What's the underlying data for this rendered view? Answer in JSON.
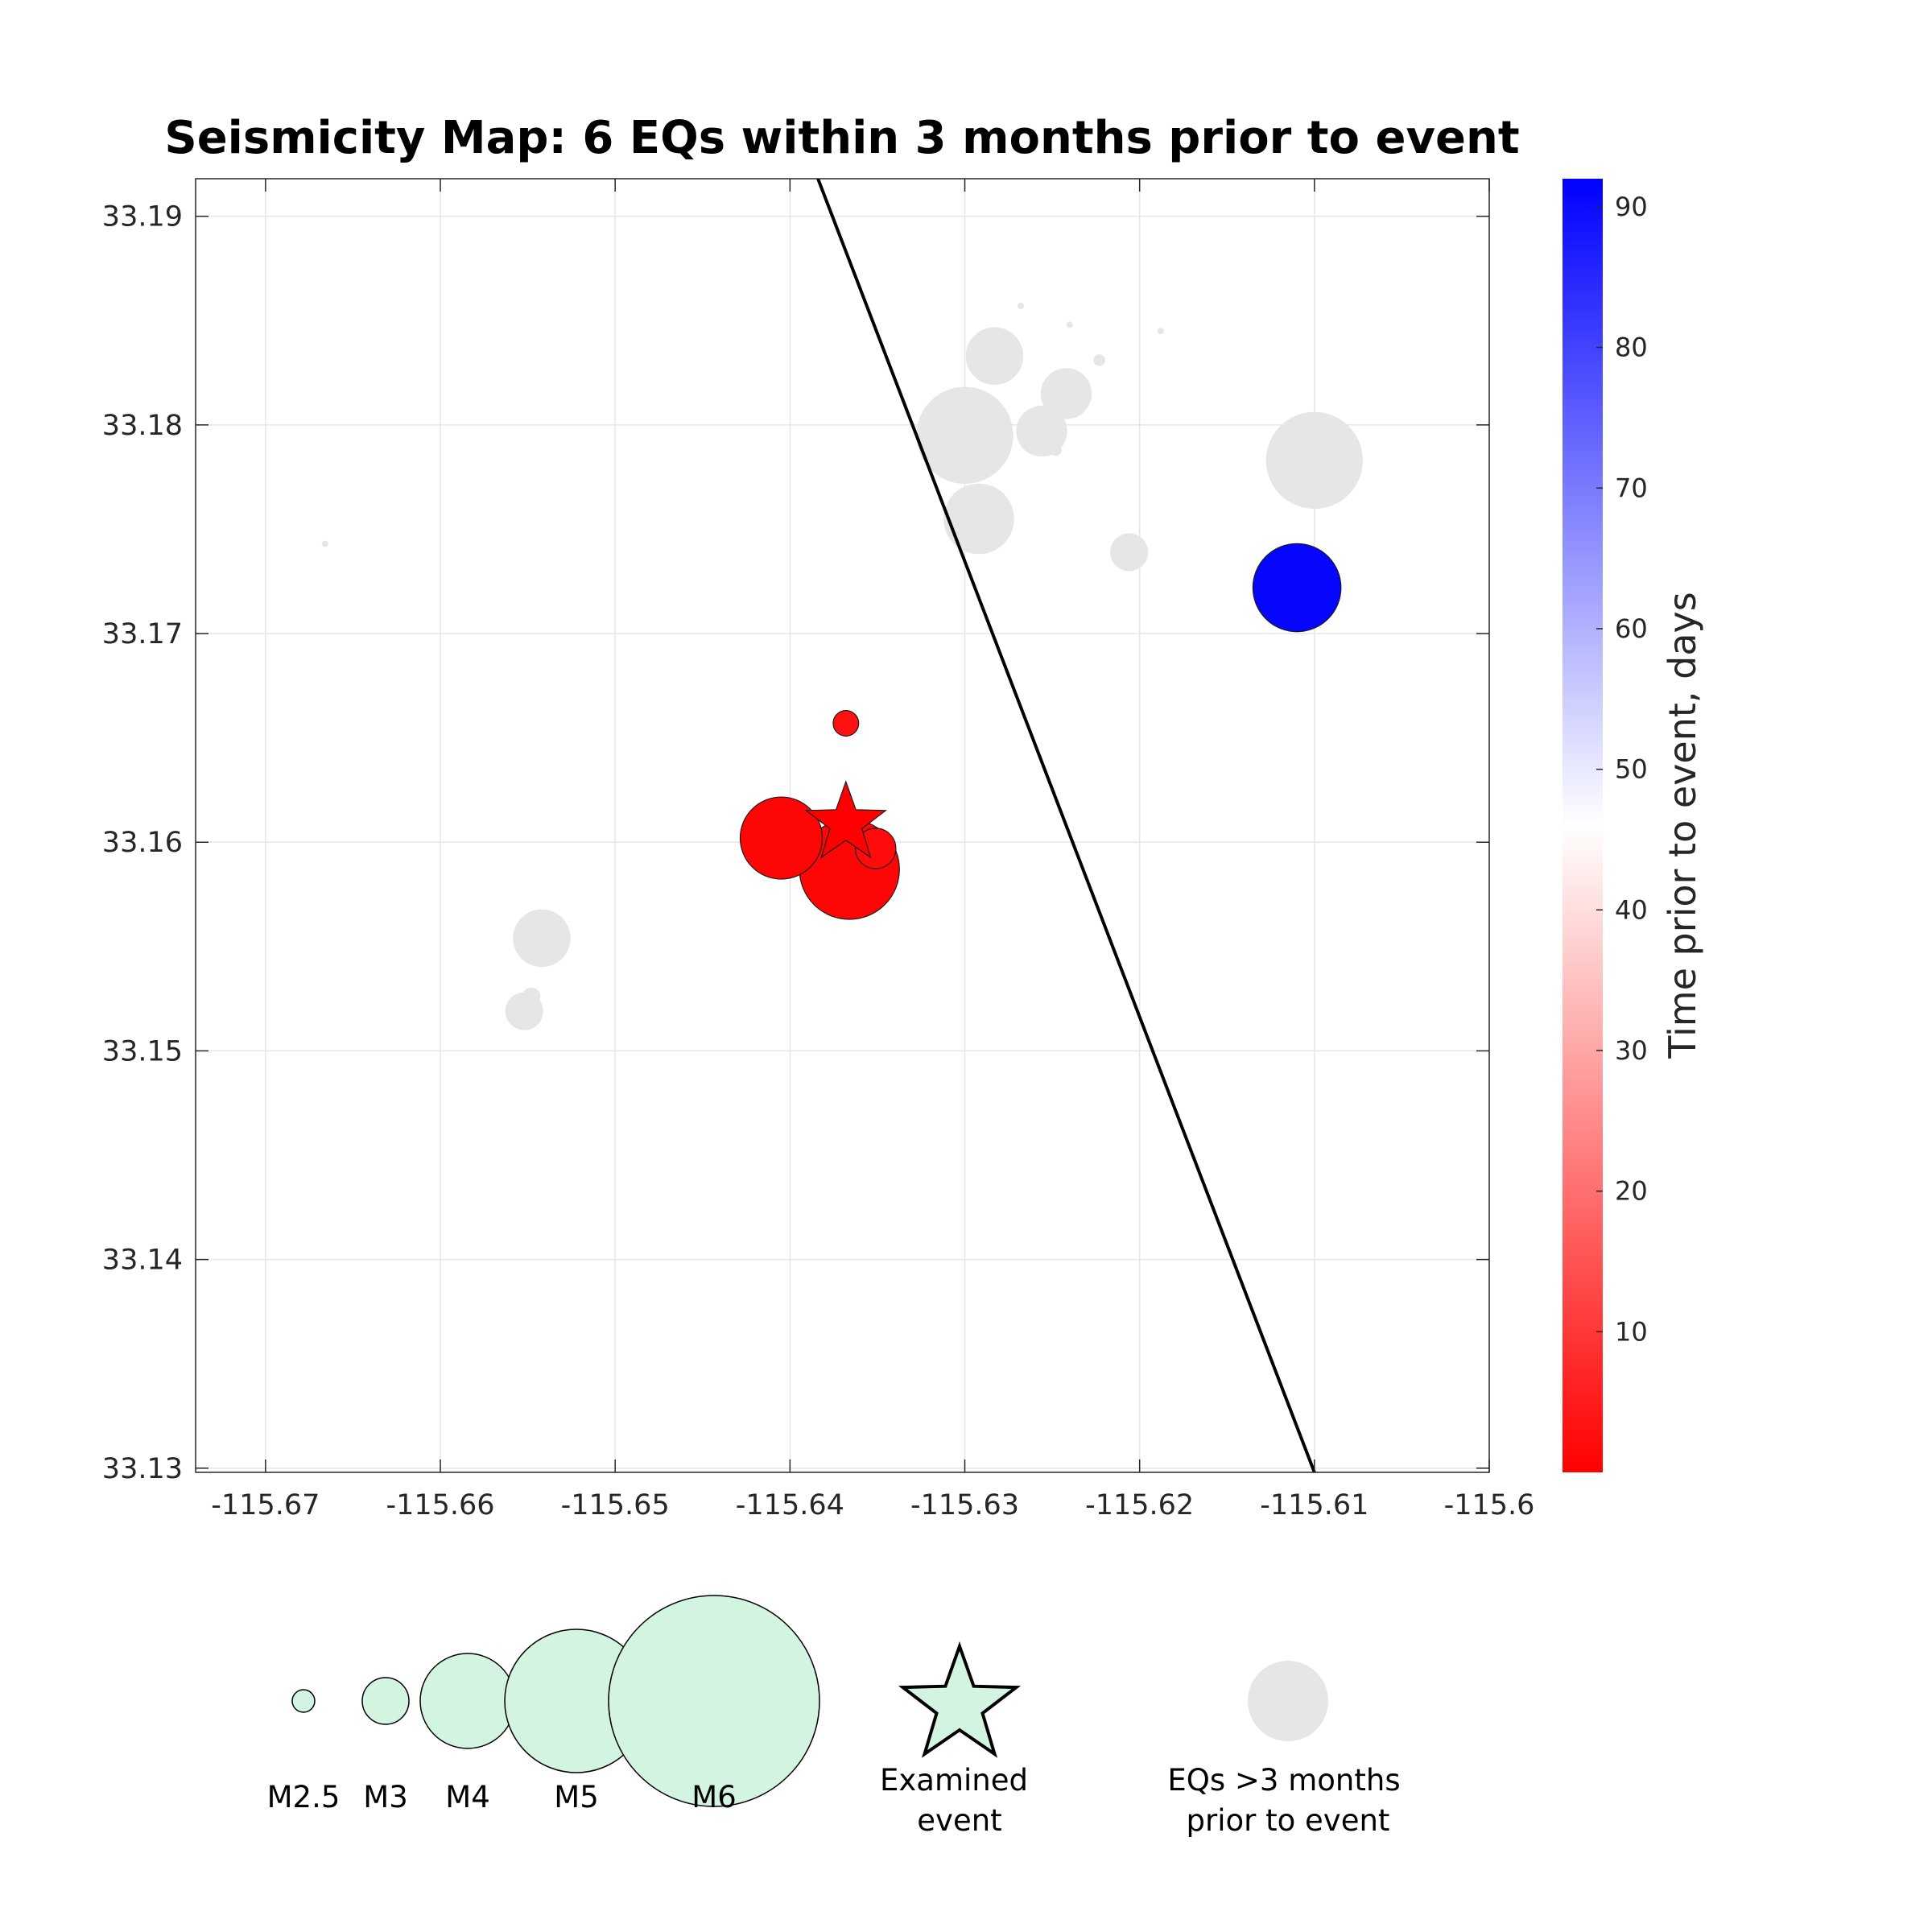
{
  "chart_data": {
    "type": "scatter",
    "title": "Seismicity Map: 6 EQs within 3 months prior to event",
    "xlim": [
      -115.674,
      -115.6
    ],
    "ylim": [
      33.1298,
      33.1918
    ],
    "x_ticks": [
      -115.67,
      -115.66,
      -115.65,
      -115.64,
      -115.63,
      -115.62,
      -115.61,
      -115.6
    ],
    "x_tick_labels": [
      "-115.67",
      "-115.66",
      "-115.65",
      "-115.64",
      "-115.63",
      "-115.62",
      "-115.61",
      "-115.6"
    ],
    "y_ticks": [
      33.13,
      33.14,
      33.15,
      33.16,
      33.17,
      33.18,
      33.19
    ],
    "y_tick_labels": [
      "33.13",
      "33.14",
      "33.15",
      "33.16",
      "33.17",
      "33.18",
      "33.19"
    ],
    "grid": true,
    "fault_line": [
      [
        -115.6384,
        33.1918
      ],
      [
        -115.61,
        33.1298
      ]
    ],
    "examined_event": {
      "lon": -115.6368,
      "lat": 33.1609,
      "color": "#ff0000"
    },
    "recent_events": [
      {
        "lon": -115.611,
        "lat": 33.1722,
        "mag": 3.6,
        "days": 91
      },
      {
        "lon": -115.6405,
        "lat": 33.1602,
        "mag": 3.5,
        "days": 1
      },
      {
        "lon": -115.6366,
        "lat": 33.1587,
        "mag": 3.8,
        "days": 1
      },
      {
        "lon": -115.6351,
        "lat": 33.1597,
        "mag": 2.8,
        "days": 2
      },
      {
        "lon": -115.6368,
        "lat": 33.1657,
        "mag": 2.55,
        "days": 3
      },
      {
        "lon": -115.6369,
        "lat": 33.1606,
        "mag": 2.5,
        "days": 2
      }
    ],
    "older_events": [
      {
        "lon": -115.61,
        "lat": 33.1783,
        "mag": 3.6
      },
      {
        "lon": -115.63,
        "lat": 33.1795,
        "mag": 3.6
      },
      {
        "lon": -115.6292,
        "lat": 33.1755,
        "mag": 3.2
      },
      {
        "lon": -115.6283,
        "lat": 33.1833,
        "mag": 3.0
      },
      {
        "lon": -115.6242,
        "lat": 33.1815,
        "mag": 2.9
      },
      {
        "lon": -115.6256,
        "lat": 33.1797,
        "mag": 2.9
      },
      {
        "lon": -115.6206,
        "lat": 33.1739,
        "mag": 2.7
      },
      {
        "lon": -115.6542,
        "lat": 33.1554,
        "mag": 3.0
      },
      {
        "lon": -115.6552,
        "lat": 33.1519,
        "mag": 2.7
      },
      {
        "lon": -115.6548,
        "lat": 33.1526,
        "mag": 2.4
      },
      {
        "lon": -115.6248,
        "lat": 33.1788,
        "mag": 2.3
      },
      {
        "lon": -115.6268,
        "lat": 33.1857,
        "mag": 2.2
      },
      {
        "lon": -115.624,
        "lat": 33.1848,
        "mag": 2.2
      },
      {
        "lon": -115.6223,
        "lat": 33.1831,
        "mag": 2.3
      },
      {
        "lon": -115.6188,
        "lat": 33.1845,
        "mag": 2.1
      },
      {
        "lon": -115.6666,
        "lat": 33.1743,
        "mag": 2.1
      }
    ],
    "colorbar": {
      "label": "Time prior to event, days",
      "range": [
        0,
        92
      ],
      "ticks": [
        10,
        20,
        30,
        40,
        50,
        60,
        70,
        80,
        90
      ],
      "tick_labels": [
        "10",
        "20",
        "30",
        "40",
        "50",
        "60",
        "70",
        "80",
        "90"
      ],
      "colors": [
        "#ff0000",
        "#ffffff",
        "#0000ff"
      ]
    },
    "older_color": "#e6e6e6",
    "legend_fill": "#d4f4e2",
    "legend": {
      "magnitudes": [
        {
          "label": "M2.5",
          "mag": 2.5
        },
        {
          "label": "M3",
          "mag": 3
        },
        {
          "label": "M4",
          "mag": 4
        },
        {
          "label": "M5",
          "mag": 5
        },
        {
          "label": "M6",
          "mag": 6
        }
      ],
      "examined_line1": "Examined",
      "examined_line2": "event",
      "older_line1": "EQs >3 months",
      "older_line2": "prior to event"
    }
  }
}
